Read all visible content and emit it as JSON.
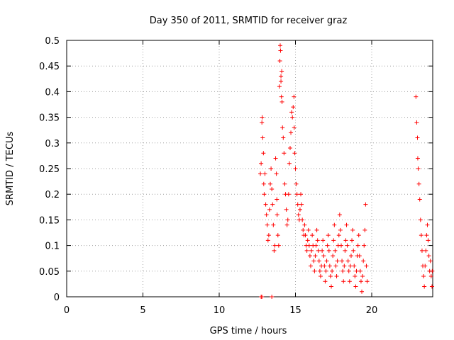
{
  "chart_data": {
    "type": "scatter",
    "title": "Day 350 of 2011, SRMTID for receiver graz",
    "xlabel": "GPS time / hours",
    "ylabel": "SRMTID / TECUs",
    "xlim": [
      0,
      24
    ],
    "ylim": [
      0,
      0.5
    ],
    "xticks": [
      0,
      5,
      10,
      15,
      20
    ],
    "xtick_labels": [
      "0",
      "5",
      "10",
      "15",
      "20"
    ],
    "yticks": [
      0,
      0.05,
      0.1,
      0.15,
      0.2,
      0.25,
      0.3,
      0.35,
      0.4,
      0.45,
      0.5
    ],
    "ytick_labels": [
      "0",
      "0.05",
      "0.1",
      "0.15",
      "0.2",
      "0.25",
      "0.3",
      "0.35",
      "0.4",
      "0.45",
      "0.5"
    ],
    "grid": true,
    "marker": "+",
    "marker_color": "#ff0000",
    "series": [
      {
        "name": "SRMTID",
        "points": [
          [
            12.75,
            0.0
          ],
          [
            12.8,
            0.0
          ],
          [
            13.45,
            0.0
          ],
          [
            12.7,
            0.24
          ],
          [
            12.75,
            0.26
          ],
          [
            12.8,
            0.34
          ],
          [
            12.82,
            0.35
          ],
          [
            12.85,
            0.31
          ],
          [
            12.9,
            0.28
          ],
          [
            12.92,
            0.22
          ],
          [
            12.95,
            0.2
          ],
          [
            13.0,
            0.24
          ],
          [
            13.05,
            0.18
          ],
          [
            13.1,
            0.16
          ],
          [
            13.15,
            0.14
          ],
          [
            13.2,
            0.11
          ],
          [
            13.25,
            0.12
          ],
          [
            13.3,
            0.17
          ],
          [
            13.35,
            0.22
          ],
          [
            13.4,
            0.25
          ],
          [
            13.45,
            0.21
          ],
          [
            13.5,
            0.18
          ],
          [
            13.55,
            0.14
          ],
          [
            13.6,
            0.09
          ],
          [
            13.65,
            0.1
          ],
          [
            13.7,
            0.27
          ],
          [
            13.75,
            0.24
          ],
          [
            13.78,
            0.19
          ],
          [
            13.8,
            0.16
          ],
          [
            13.85,
            0.12
          ],
          [
            13.9,
            0.1
          ],
          [
            13.95,
            0.41
          ],
          [
            13.98,
            0.46
          ],
          [
            14.0,
            0.49
          ],
          [
            14.02,
            0.48
          ],
          [
            14.05,
            0.43
          ],
          [
            14.05,
            0.42
          ],
          [
            14.08,
            0.39
          ],
          [
            14.1,
            0.44
          ],
          [
            14.12,
            0.38
          ],
          [
            14.15,
            0.33
          ],
          [
            14.2,
            0.31
          ],
          [
            14.25,
            0.28
          ],
          [
            14.3,
            0.22
          ],
          [
            14.35,
            0.2
          ],
          [
            14.4,
            0.17
          ],
          [
            14.45,
            0.14
          ],
          [
            14.5,
            0.15
          ],
          [
            14.55,
            0.2
          ],
          [
            14.6,
            0.26
          ],
          [
            14.65,
            0.29
          ],
          [
            14.7,
            0.32
          ],
          [
            14.75,
            0.36
          ],
          [
            14.8,
            0.35
          ],
          [
            14.85,
            0.37
          ],
          [
            14.9,
            0.39
          ],
          [
            14.92,
            0.33
          ],
          [
            14.95,
            0.28
          ],
          [
            15.0,
            0.25
          ],
          [
            15.05,
            0.22
          ],
          [
            15.1,
            0.2
          ],
          [
            15.15,
            0.18
          ],
          [
            15.2,
            0.16
          ],
          [
            15.25,
            0.15
          ],
          [
            15.3,
            0.17
          ],
          [
            15.35,
            0.2
          ],
          [
            15.4,
            0.18
          ],
          [
            15.45,
            0.15
          ],
          [
            15.5,
            0.13
          ],
          [
            15.55,
            0.12
          ],
          [
            15.6,
            0.14
          ],
          [
            15.65,
            0.12
          ],
          [
            15.7,
            0.1
          ],
          [
            15.75,
            0.09
          ],
          [
            15.8,
            0.11
          ],
          [
            15.85,
            0.13
          ],
          [
            15.9,
            0.1
          ],
          [
            15.95,
            0.08
          ],
          [
            16.0,
            0.06
          ],
          [
            16.05,
            0.09
          ],
          [
            16.1,
            0.12
          ],
          [
            16.15,
            0.1
          ],
          [
            16.2,
            0.07
          ],
          [
            16.25,
            0.05
          ],
          [
            16.3,
            0.08
          ],
          [
            16.35,
            0.1
          ],
          [
            16.4,
            0.13
          ],
          [
            16.45,
            0.11
          ],
          [
            16.5,
            0.09
          ],
          [
            16.55,
            0.07
          ],
          [
            16.6,
            0.05
          ],
          [
            16.65,
            0.04
          ],
          [
            16.7,
            0.06
          ],
          [
            16.75,
            0.09
          ],
          [
            16.8,
            0.11
          ],
          [
            16.85,
            0.08
          ],
          [
            16.9,
            0.06
          ],
          [
            16.95,
            0.03
          ],
          [
            17.0,
            0.05
          ],
          [
            17.05,
            0.07
          ],
          [
            17.1,
            0.1
          ],
          [
            17.15,
            0.12
          ],
          [
            17.2,
            0.09
          ],
          [
            17.25,
            0.06
          ],
          [
            17.3,
            0.04
          ],
          [
            17.35,
            0.02
          ],
          [
            17.4,
            0.05
          ],
          [
            17.45,
            0.08
          ],
          [
            17.5,
            0.11
          ],
          [
            17.55,
            0.14
          ],
          [
            17.6,
            0.09
          ],
          [
            17.65,
            0.06
          ],
          [
            17.7,
            0.04
          ],
          [
            17.75,
            0.07
          ],
          [
            17.8,
            0.1
          ],
          [
            17.85,
            0.12
          ],
          [
            17.9,
            0.16
          ],
          [
            17.95,
            0.13
          ],
          [
            18.0,
            0.1
          ],
          [
            18.05,
            0.07
          ],
          [
            18.1,
            0.05
          ],
          [
            18.15,
            0.03
          ],
          [
            18.2,
            0.06
          ],
          [
            18.25,
            0.09
          ],
          [
            18.3,
            0.11
          ],
          [
            18.35,
            0.14
          ],
          [
            18.4,
            0.1
          ],
          [
            18.45,
            0.07
          ],
          [
            18.5,
            0.05
          ],
          [
            18.55,
            0.03
          ],
          [
            18.6,
            0.06
          ],
          [
            18.65,
            0.08
          ],
          [
            18.7,
            0.11
          ],
          [
            18.75,
            0.13
          ],
          [
            18.8,
            0.09
          ],
          [
            18.85,
            0.06
          ],
          [
            18.9,
            0.04
          ],
          [
            18.95,
            0.02
          ],
          [
            19.0,
            0.05
          ],
          [
            19.05,
            0.08
          ],
          [
            19.1,
            0.1
          ],
          [
            19.15,
            0.12
          ],
          [
            19.2,
            0.08
          ],
          [
            19.25,
            0.05
          ],
          [
            19.3,
            0.03
          ],
          [
            19.35,
            0.01
          ],
          [
            19.4,
            0.04
          ],
          [
            19.45,
            0.07
          ],
          [
            19.5,
            0.1
          ],
          [
            19.55,
            0.13
          ],
          [
            19.6,
            0.18
          ],
          [
            19.65,
            0.06
          ],
          [
            19.7,
            0.03
          ],
          [
            22.9,
            0.39
          ],
          [
            22.95,
            0.34
          ],
          [
            23.0,
            0.31
          ],
          [
            23.02,
            0.27
          ],
          [
            23.05,
            0.25
          ],
          [
            23.1,
            0.22
          ],
          [
            23.15,
            0.19
          ],
          [
            23.2,
            0.15
          ],
          [
            23.25,
            0.12
          ],
          [
            23.3,
            0.09
          ],
          [
            23.35,
            0.06
          ],
          [
            23.4,
            0.04
          ],
          [
            23.45,
            0.02
          ],
          [
            23.5,
            0.06
          ],
          [
            23.55,
            0.09
          ],
          [
            23.6,
            0.12
          ],
          [
            23.65,
            0.14
          ],
          [
            23.7,
            0.11
          ],
          [
            23.75,
            0.08
          ],
          [
            23.8,
            0.05
          ],
          [
            23.85,
            0.07
          ],
          [
            23.9,
            0.04
          ],
          [
            23.95,
            0.02
          ],
          [
            23.97,
            0.05
          ]
        ]
      }
    ]
  }
}
